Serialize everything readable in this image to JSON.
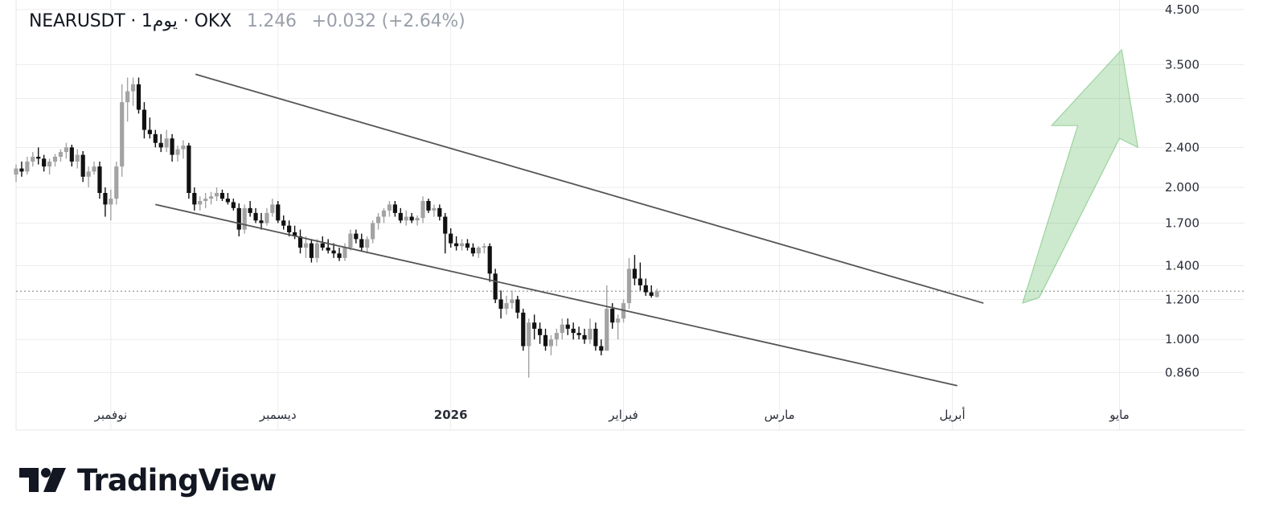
{
  "header": {
    "symbol": "NEARUSDT · 1يوم · OKX",
    "price": "1.246",
    "change": "+0.032 (+2.64%)"
  },
  "brand": {
    "name": "TradingView",
    "icon": "tradingview-logo-icon"
  },
  "chart_data": {
    "type": "candlestick",
    "title": "",
    "y_scale": "log",
    "ylim": [
      0.78,
      4.7
    ],
    "y_ticks": [
      "4.500",
      "3.500",
      "3.000",
      "2.400",
      "2.000",
      "1.700",
      "1.400",
      "1.200",
      "1.000",
      "0.860"
    ],
    "y_tick_values": [
      4.5,
      3.5,
      3.0,
      2.4,
      2.0,
      1.7,
      1.4,
      1.2,
      1.0,
      0.86
    ],
    "x_range_days": [
      0,
      220
    ],
    "x_ticks": [
      {
        "label": "نوفمبر",
        "day": 17,
        "bold": false
      },
      {
        "label": "ديسمبر",
        "day": 47,
        "bold": false
      },
      {
        "label": "2026",
        "day": 78,
        "bold": true
      },
      {
        "label": "فبراير",
        "day": 109,
        "bold": false
      },
      {
        "label": "مارس",
        "day": 137,
        "bold": false
      },
      {
        "label": "أبريل",
        "day": 168,
        "bold": false
      },
      {
        "label": "مايو",
        "day": 198,
        "bold": false
      }
    ],
    "last_price": 1.246,
    "colors": {
      "up": "#a3a3a3",
      "down": "#111111",
      "arrow": "#4caf50",
      "channel": "#555555"
    },
    "candles": [
      [
        2.12,
        2.22,
        2.05,
        2.18
      ],
      [
        2.18,
        2.25,
        2.1,
        2.15
      ],
      [
        2.15,
        2.3,
        2.12,
        2.25
      ],
      [
        2.25,
        2.35,
        2.2,
        2.3
      ],
      [
        2.3,
        2.4,
        2.22,
        2.28
      ],
      [
        2.28,
        2.32,
        2.15,
        2.2
      ],
      [
        2.2,
        2.28,
        2.12,
        2.25
      ],
      [
        2.25,
        2.33,
        2.2,
        2.3
      ],
      [
        2.3,
        2.38,
        2.25,
        2.35
      ],
      [
        2.35,
        2.45,
        2.28,
        2.4
      ],
      [
        2.4,
        2.43,
        2.2,
        2.25
      ],
      [
        2.25,
        2.38,
        2.18,
        2.32
      ],
      [
        2.32,
        2.36,
        2.05,
        2.1
      ],
      [
        2.1,
        2.2,
        2.0,
        2.15
      ],
      [
        2.15,
        2.25,
        2.12,
        2.2
      ],
      [
        2.2,
        2.25,
        1.9,
        1.95
      ],
      [
        1.95,
        2.0,
        1.75,
        1.85
      ],
      [
        1.85,
        1.98,
        1.72,
        1.9
      ],
      [
        1.9,
        2.25,
        1.85,
        2.2
      ],
      [
        2.2,
        3.2,
        2.1,
        2.95
      ],
      [
        2.95,
        3.3,
        2.7,
        3.1
      ],
      [
        3.1,
        3.3,
        2.9,
        3.2
      ],
      [
        3.2,
        3.3,
        2.8,
        2.85
      ],
      [
        2.85,
        2.95,
        2.5,
        2.6
      ],
      [
        2.6,
        2.75,
        2.5,
        2.55
      ],
      [
        2.55,
        2.6,
        2.4,
        2.45
      ],
      [
        2.45,
        2.55,
        2.35,
        2.4
      ],
      [
        2.4,
        2.6,
        2.35,
        2.5
      ],
      [
        2.5,
        2.55,
        2.25,
        2.32
      ],
      [
        2.32,
        2.42,
        2.25,
        2.38
      ],
      [
        2.38,
        2.48,
        2.28,
        2.42
      ],
      [
        2.42,
        2.45,
        1.9,
        1.95
      ],
      [
        1.95,
        2.0,
        1.8,
        1.85
      ],
      [
        1.85,
        1.92,
        1.8,
        1.88
      ],
      [
        1.88,
        1.95,
        1.82,
        1.9
      ],
      [
        1.9,
        1.96,
        1.85,
        1.92
      ],
      [
        1.92,
        2.0,
        1.88,
        1.95
      ],
      [
        1.95,
        1.98,
        1.88,
        1.9
      ],
      [
        1.9,
        1.95,
        1.85,
        1.87
      ],
      [
        1.87,
        1.9,
        1.8,
        1.82
      ],
      [
        1.82,
        1.86,
        1.6,
        1.65
      ],
      [
        1.65,
        1.85,
        1.62,
        1.82
      ],
      [
        1.82,
        1.88,
        1.75,
        1.78
      ],
      [
        1.78,
        1.82,
        1.7,
        1.72
      ],
      [
        1.72,
        1.78,
        1.65,
        1.7
      ],
      [
        1.7,
        1.82,
        1.68,
        1.78
      ],
      [
        1.78,
        1.9,
        1.75,
        1.85
      ],
      [
        1.85,
        1.88,
        1.7,
        1.72
      ],
      [
        1.72,
        1.76,
        1.65,
        1.68
      ],
      [
        1.68,
        1.72,
        1.6,
        1.63
      ],
      [
        1.63,
        1.68,
        1.58,
        1.6
      ],
      [
        1.6,
        1.65,
        1.48,
        1.52
      ],
      [
        1.52,
        1.6,
        1.45,
        1.55
      ],
      [
        1.55,
        1.58,
        1.42,
        1.45
      ],
      [
        1.45,
        1.58,
        1.42,
        1.55
      ],
      [
        1.55,
        1.6,
        1.5,
        1.52
      ],
      [
        1.52,
        1.58,
        1.48,
        1.5
      ],
      [
        1.5,
        1.55,
        1.45,
        1.48
      ],
      [
        1.48,
        1.52,
        1.43,
        1.45
      ],
      [
        1.45,
        1.55,
        1.43,
        1.52
      ],
      [
        1.52,
        1.65,
        1.5,
        1.62
      ],
      [
        1.62,
        1.65,
        1.55,
        1.58
      ],
      [
        1.58,
        1.62,
        1.5,
        1.52
      ],
      [
        1.52,
        1.6,
        1.48,
        1.58
      ],
      [
        1.58,
        1.72,
        1.55,
        1.7
      ],
      [
        1.7,
        1.78,
        1.65,
        1.75
      ],
      [
        1.75,
        1.82,
        1.7,
        1.8
      ],
      [
        1.8,
        1.88,
        1.75,
        1.85
      ],
      [
        1.85,
        1.88,
        1.75,
        1.78
      ],
      [
        1.78,
        1.82,
        1.7,
        1.72
      ],
      [
        1.72,
        1.8,
        1.68,
        1.75
      ],
      [
        1.75,
        1.78,
        1.7,
        1.72
      ],
      [
        1.72,
        1.76,
        1.68,
        1.74
      ],
      [
        1.74,
        1.92,
        1.7,
        1.88
      ],
      [
        1.88,
        1.9,
        1.78,
        1.8
      ],
      [
        1.8,
        1.85,
        1.75,
        1.82
      ],
      [
        1.82,
        1.85,
        1.72,
        1.75
      ],
      [
        1.75,
        1.78,
        1.48,
        1.62
      ],
      [
        1.62,
        1.66,
        1.52,
        1.55
      ],
      [
        1.55,
        1.6,
        1.5,
        1.53
      ],
      [
        1.53,
        1.58,
        1.5,
        1.55
      ],
      [
        1.55,
        1.58,
        1.5,
        1.52
      ],
      [
        1.52,
        1.55,
        1.46,
        1.48
      ],
      [
        1.48,
        1.53,
        1.45,
        1.52
      ],
      [
        1.52,
        1.55,
        1.48,
        1.53
      ],
      [
        1.53,
        1.55,
        1.3,
        1.35
      ],
      [
        1.35,
        1.38,
        1.18,
        1.2
      ],
      [
        1.2,
        1.25,
        1.1,
        1.15
      ],
      [
        1.15,
        1.22,
        1.12,
        1.18
      ],
      [
        1.18,
        1.25,
        1.15,
        1.2
      ],
      [
        1.2,
        1.22,
        1.1,
        1.13
      ],
      [
        1.13,
        1.15,
        0.95,
        0.97
      ],
      [
        0.97,
        1.1,
        0.84,
        1.08
      ],
      [
        1.08,
        1.12,
        1.0,
        1.05
      ],
      [
        1.05,
        1.08,
        0.98,
        1.02
      ],
      [
        1.02,
        1.05,
        0.95,
        0.97
      ],
      [
        0.97,
        1.02,
        0.93,
        1.0
      ],
      [
        1.0,
        1.05,
        0.97,
        1.03
      ],
      [
        1.03,
        1.1,
        1.0,
        1.07
      ],
      [
        1.07,
        1.1,
        1.02,
        1.05
      ],
      [
        1.05,
        1.08,
        1.0,
        1.03
      ],
      [
        1.03,
        1.06,
        1.0,
        1.02
      ],
      [
        1.02,
        1.05,
        0.98,
        1.0
      ],
      [
        1.0,
        1.1,
        0.98,
        1.05
      ],
      [
        1.05,
        1.08,
        0.95,
        0.97
      ],
      [
        0.97,
        1.0,
        0.93,
        0.95
      ],
      [
        0.95,
        1.28,
        0.95,
        1.15
      ],
      [
        1.15,
        1.18,
        1.05,
        1.08
      ],
      [
        1.08,
        1.12,
        1.0,
        1.1
      ],
      [
        1.1,
        1.2,
        1.08,
        1.18
      ],
      [
        1.18,
        1.45,
        1.15,
        1.38
      ],
      [
        1.38,
        1.47,
        1.28,
        1.32
      ],
      [
        1.32,
        1.42,
        1.25,
        1.28
      ],
      [
        1.28,
        1.32,
        1.22,
        1.24
      ],
      [
        1.24,
        1.28,
        1.21,
        1.22
      ],
      [
        1.214,
        1.26,
        1.21,
        1.246
      ]
    ],
    "channel_upper": [
      [
        32.2,
        3.35
      ],
      [
        173.6,
        1.18
      ]
    ],
    "channel_lower": [
      [
        25.0,
        1.85
      ],
      [
        168.9,
        0.81
      ]
    ],
    "target_arrow": [
      [
        180.6,
        1.18
      ],
      [
        190.5,
        2.65
      ],
      [
        185.8,
        2.65
      ],
      [
        198.4,
        3.75
      ],
      [
        201.3,
        2.4
      ],
      [
        198.0,
        2.5
      ],
      [
        183.6,
        1.21
      ]
    ]
  }
}
